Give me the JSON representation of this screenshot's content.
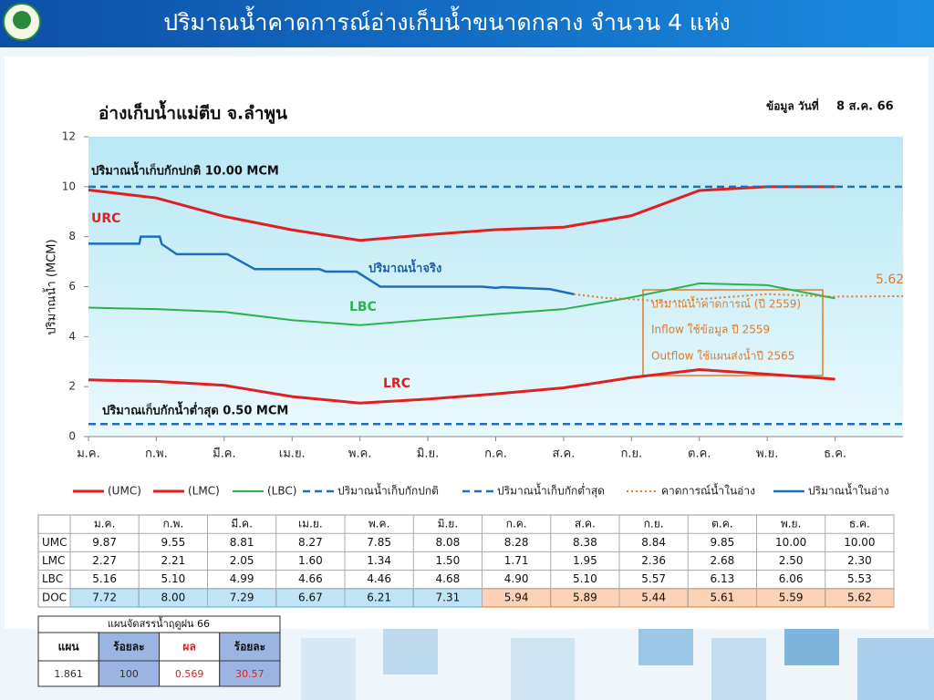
{
  "header": {
    "title": "ปริมาณน้ำคาดการณ์อ่างเก็บน้ำขนาดกลาง จำนวน 4 แห่ง"
  },
  "chart_data": {
    "type": "line",
    "title": "อ่างเก็บน้ำแม่ตีบ จ.ลำพูน",
    "date_label": "ข้อมูล วันที่",
    "date": "8 ส.ค. 66",
    "ylabel": "ปริมาณน้ำ (MCM)",
    "ylim": [
      0,
      12
    ],
    "yticks": [
      0,
      2,
      4,
      6,
      8,
      10,
      12
    ],
    "xlim": [
      0,
      12
    ],
    "xticks": [
      {
        "value": 0,
        "label": "ม.ค."
      },
      {
        "value": 1,
        "label": "ก.พ."
      },
      {
        "value": 2,
        "label": "มี.ค."
      },
      {
        "value": 3,
        "label": "เม.ย."
      },
      {
        "value": 4,
        "label": "พ.ค."
      },
      {
        "value": 5,
        "label": "มิ.ย."
      },
      {
        "value": 6,
        "label": "ก.ค."
      },
      {
        "value": 7,
        "label": "ส.ค."
      },
      {
        "value": 8,
        "label": "ก.ย."
      },
      {
        "value": 9,
        "label": "ต.ค."
      },
      {
        "value": 10,
        "label": "พ.ย."
      },
      {
        "value": 11,
        "label": "ธ.ค."
      }
    ],
    "series": [
      {
        "name": "(UMC)",
        "color": "#e02020",
        "style": "solid",
        "width": 3,
        "x": [
          0,
          1,
          2,
          3,
          4,
          5,
          6,
          7,
          8,
          9,
          10,
          11
        ],
        "values": [
          9.87,
          9.55,
          8.81,
          8.27,
          7.85,
          8.08,
          8.28,
          8.38,
          8.84,
          9.85,
          10.0,
          10.0
        ]
      },
      {
        "name": "(LMC)",
        "color": "#e02020",
        "style": "solid",
        "width": 3,
        "x": [
          0,
          1,
          2,
          3,
          4,
          5,
          6,
          7,
          8,
          9,
          10,
          11
        ],
        "values": [
          2.27,
          2.21,
          2.05,
          1.6,
          1.34,
          1.5,
          1.71,
          1.95,
          2.36,
          2.68,
          2.5,
          2.3
        ]
      },
      {
        "name": "(LBC)",
        "color": "#2bb34a",
        "style": "solid",
        "width": 2,
        "x": [
          0,
          1,
          2,
          3,
          4,
          5,
          6,
          7,
          8,
          9,
          10,
          11
        ],
        "values": [
          5.16,
          5.1,
          4.99,
          4.66,
          4.46,
          4.68,
          4.9,
          5.1,
          5.57,
          6.13,
          6.06,
          5.53
        ]
      },
      {
        "name": "ปริมาณน้ำเก็บกักปกติ",
        "color": "#1f6fb8",
        "style": "dashed",
        "width": 2.5,
        "x": [
          0,
          12
        ],
        "values": [
          10,
          10
        ]
      },
      {
        "name": "ปริมาณน้ำเก็บกักต่ำสุด",
        "color": "#1f6fb8",
        "style": "dashed",
        "width": 2.5,
        "x": [
          0,
          12
        ],
        "values": [
          0.5,
          0.5
        ]
      },
      {
        "name": "คาดการณ์น้ำในอ่าง",
        "color": "#e07b2a",
        "style": "dotted",
        "width": 2,
        "x": [
          7.15,
          7.6,
          8.0,
          8.5,
          9.0,
          9.5,
          10.0,
          10.5,
          11.0,
          12.0
        ],
        "values": [
          5.7,
          5.55,
          5.5,
          5.4,
          5.5,
          5.6,
          5.7,
          5.65,
          5.6,
          5.62
        ]
      },
      {
        "name": "ปริมาณน้ำในอ่าง",
        "color": "#1f6fb8",
        "style": "solid",
        "width": 2.5,
        "x": [
          0,
          0.75,
          0.77,
          1.05,
          1.08,
          1.3,
          2.05,
          2.45,
          3.4,
          3.5,
          3.95,
          4.3,
          5.8,
          6.0,
          6.1,
          6.8,
          7.15
        ],
        "values": [
          7.72,
          7.72,
          8.0,
          8.0,
          7.7,
          7.3,
          7.3,
          6.7,
          6.7,
          6.6,
          6.6,
          6.0,
          6.0,
          5.95,
          5.98,
          5.9,
          5.7
        ]
      }
    ],
    "annotations": [
      {
        "text": "ปริมาณน้ำเก็บกักปกติ 10.00 MCM",
        "color": "#111111"
      },
      {
        "text": "ปริมาณเก็บกักน้ำต่ำสุด 0.50 MCM",
        "color": "#111111"
      },
      {
        "text": "URC",
        "color": "#e02020"
      },
      {
        "text": "LRC",
        "color": "#e02020"
      },
      {
        "text": "LBC",
        "color": "#2bb34a"
      },
      {
        "text": "ปริมาณน้ำจริง",
        "color": "#1f5fa8"
      },
      {
        "text": "5.62",
        "color": "#e07b2a"
      },
      {
        "text": "ปริมาณน้ำคาดการณ์ (ปี 2559)",
        "color": "#e07b2a"
      },
      {
        "text": "Inflow ใช้ข้อมูล ปี 2559",
        "color": "#e07b2a"
      },
      {
        "text": "Outflow ใช้แผนส่งน้ำปี 2565",
        "color": "#e07b2a"
      }
    ]
  },
  "table": {
    "columns": [
      "ม.ค.",
      "ก.พ.",
      "มี.ค.",
      "เม.ย.",
      "พ.ค.",
      "มิ.ย.",
      "ก.ค.",
      "ส.ค.",
      "ก.ย.",
      "ต.ค.",
      "พ.ย.",
      "ธ.ค."
    ],
    "rows": [
      {
        "label": "UMC",
        "cells": [
          "9.87",
          "9.55",
          "8.81",
          "8.27",
          "7.85",
          "8.08",
          "8.28",
          "8.38",
          "8.84",
          "9.85",
          "10.00",
          "10.00"
        ]
      },
      {
        "label": "LMC",
        "cells": [
          "2.27",
          "2.21",
          "2.05",
          "1.60",
          "1.34",
          "1.50",
          "1.71",
          "1.95",
          "2.36",
          "2.68",
          "2.50",
          "2.30"
        ]
      },
      {
        "label": "LBC",
        "cells": [
          "5.16",
          "5.10",
          "4.99",
          "4.66",
          "4.46",
          "4.68",
          "4.90",
          "5.10",
          "5.57",
          "6.13",
          "6.06",
          "5.53"
        ]
      },
      {
        "label": "DOC",
        "cells": [
          "7.72",
          "8.00",
          "7.29",
          "6.67",
          "6.21",
          "7.31",
          "5.94",
          "5.89",
          "5.44",
          "5.61",
          "5.59",
          "5.62"
        ]
      }
    ]
  },
  "plan": {
    "title": "แผนจัดสรรน้ำฤดูฝน 66",
    "headers": [
      "แผน",
      "ร้อยละ",
      "ผล",
      "ร้อยละ"
    ],
    "values": [
      "1.861",
      "100",
      "0.569",
      "30.57"
    ]
  }
}
